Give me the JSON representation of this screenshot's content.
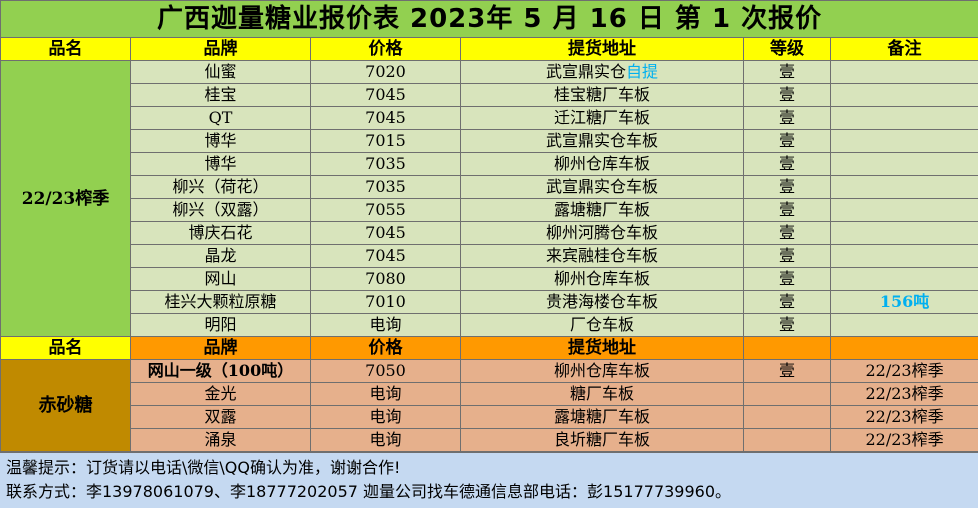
{
  "title": "广西迦量糖业报价表 2023年 5 月 16 日 第 1 次报价",
  "header1": {
    "category": "品名",
    "brand": "品牌",
    "price": "价格",
    "location": "提货地址",
    "grade": "等级",
    "remark": "备注"
  },
  "section1": {
    "category": "22/23榨季",
    "rows": [
      {
        "brand": "仙蜜",
        "price": "7020",
        "location": "武宣鼎实仓",
        "location_extra": "自提",
        "grade": "壹",
        "remark": ""
      },
      {
        "brand": "桂宝",
        "price": "7045",
        "location": "桂宝糖厂车板",
        "grade": "壹",
        "remark": ""
      },
      {
        "brand": "QT",
        "price": "7045",
        "location": "迁江糖厂车板",
        "grade": "壹",
        "remark": ""
      },
      {
        "brand": "博华",
        "price": "7015",
        "location": "武宣鼎实仓车板",
        "grade": "壹",
        "remark": ""
      },
      {
        "brand": "博华",
        "price": "7035",
        "location": "柳州仓库车板",
        "grade": "壹",
        "remark": ""
      },
      {
        "brand": "柳兴（荷花）",
        "price": "7035",
        "location": "武宣鼎实仓车板",
        "grade": "壹",
        "remark": ""
      },
      {
        "brand": "柳兴（双露）",
        "price": "7055",
        "location": "露塘糖厂车板",
        "grade": "壹",
        "remark": ""
      },
      {
        "brand": "博庆石花",
        "price": "7045",
        "location": "柳州河腾仓车板",
        "grade": "壹",
        "remark": ""
      },
      {
        "brand": "晶龙",
        "price": "7045",
        "location": "来宾融桂仓车板",
        "grade": "壹",
        "remark": ""
      },
      {
        "brand": "网山",
        "price": "7080",
        "location": "柳州仓库车板",
        "grade": "壹",
        "remark": ""
      },
      {
        "brand": "桂兴大颗粒原糖",
        "price": "7010",
        "location": "贵港海楼仓车板",
        "grade": "壹",
        "remark": "156吨"
      },
      {
        "brand": "明阳",
        "price": "电询",
        "location": "厂仓车板",
        "grade": "壹",
        "remark": ""
      }
    ]
  },
  "header2": {
    "category": "品名",
    "brand": "品牌",
    "price": "价格",
    "location": "提货地址",
    "grade": "",
    "remark": ""
  },
  "section2": {
    "category": "赤砂糖",
    "rows": [
      {
        "brand": "网山一级（100吨）",
        "price": "7050",
        "location": "柳州仓库车板",
        "grade": "壹",
        "remark": "22/23榨季"
      },
      {
        "brand": "金光",
        "price": "电询",
        "location": "糖厂车板",
        "grade": "",
        "remark": "22/23榨季"
      },
      {
        "brand": "双露",
        "price": "电询",
        "location": "露塘糖厂车板",
        "grade": "",
        "remark": "22/23榨季"
      },
      {
        "brand": "涌泉",
        "price": "电询",
        "location": "良圻糖厂车板",
        "grade": "",
        "remark": "22/23榨季"
      }
    ]
  },
  "footer": {
    "line1": "温馨提示：订货请以电话\\微信\\QQ确认为准，谢谢合作!",
    "line2": "联系方式：李13978061079、李18777202057    迦量公司找车德通信息部电话：彭15177739960。"
  }
}
